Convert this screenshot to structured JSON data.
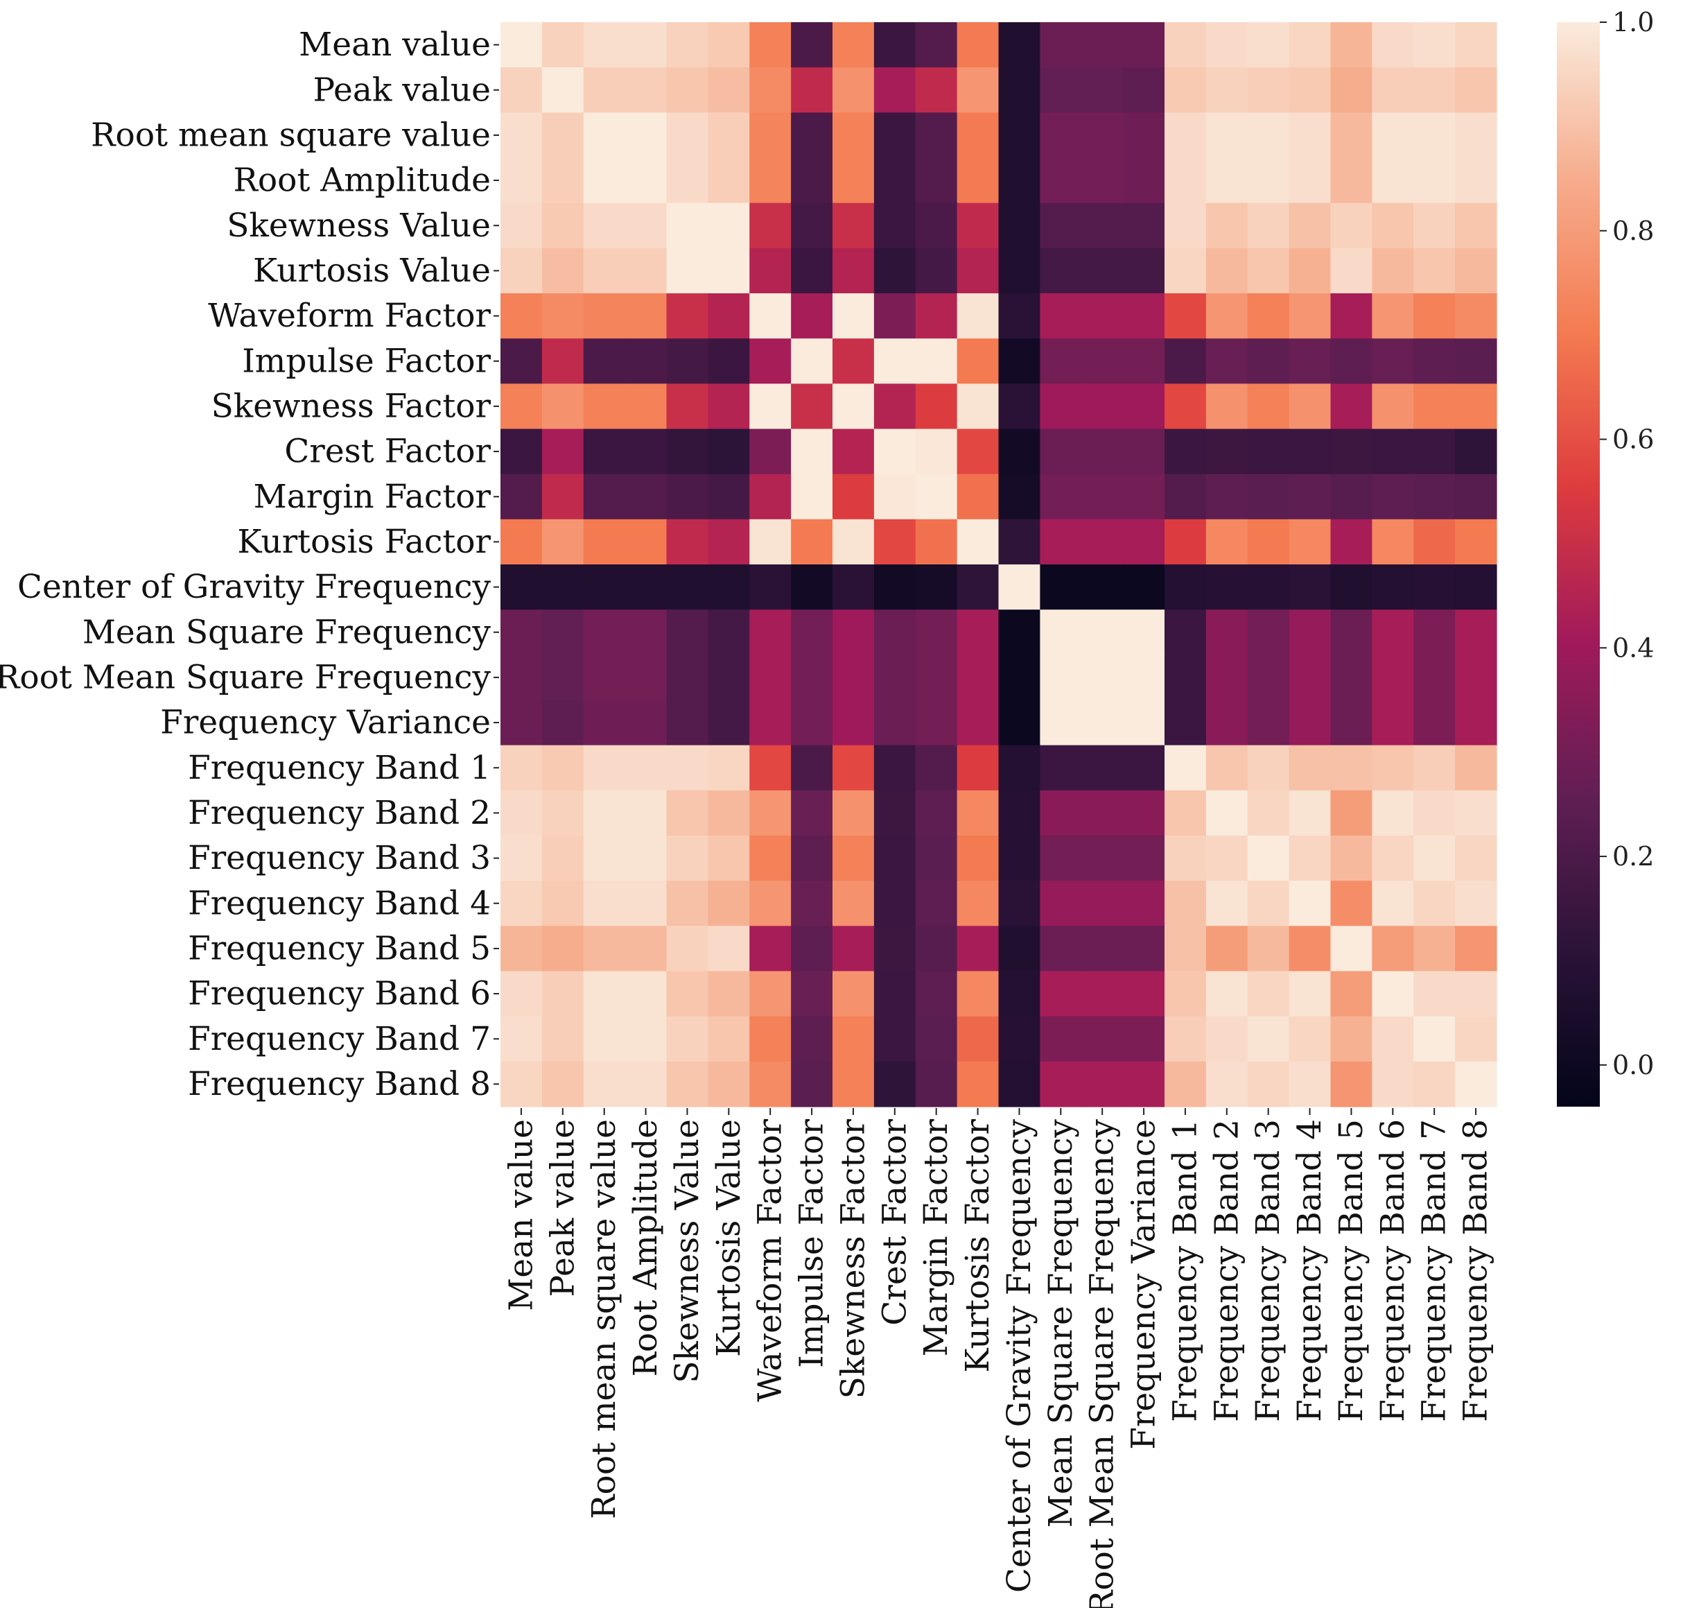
{
  "chart_data": {
    "type": "heatmap",
    "title": "",
    "xlabel": "",
    "ylabel": "",
    "labels": [
      "Mean value",
      "Peak value",
      "Root mean square value",
      "Root Amplitude",
      "Skewness Value",
      "Kurtosis Value",
      "Waveform Factor",
      "Impulse Factor",
      "Skewness Factor",
      "Crest Factor",
      "Margin Factor",
      "Kurtosis Factor",
      "Center of Gravity Frequency",
      "Mean Square Frequency",
      "Root Mean Square Frequency",
      "Frequency Variance",
      "Frequency Band 1",
      "Frequency Band 2",
      "Frequency Band 3",
      "Frequency Band 4",
      "Frequency Band 5",
      "Frequency Band 6",
      "Frequency Band 7",
      "Frequency Band 8"
    ],
    "matrix": [
      [
        1.0,
        0.94,
        0.97,
        0.97,
        0.94,
        0.92,
        0.72,
        0.2,
        0.72,
        0.15,
        0.22,
        0.7,
        0.07,
        0.28,
        0.28,
        0.28,
        0.94,
        0.96,
        0.97,
        0.95,
        0.87,
        0.96,
        0.97,
        0.95
      ],
      [
        0.94,
        1.0,
        0.93,
        0.93,
        0.91,
        0.89,
        0.75,
        0.48,
        0.77,
        0.42,
        0.48,
        0.78,
        0.07,
        0.26,
        0.26,
        0.25,
        0.92,
        0.94,
        0.93,
        0.92,
        0.85,
        0.93,
        0.93,
        0.91
      ],
      [
        0.97,
        0.93,
        1.0,
        1.0,
        0.96,
        0.93,
        0.73,
        0.2,
        0.72,
        0.15,
        0.22,
        0.7,
        0.07,
        0.3,
        0.3,
        0.29,
        0.96,
        0.98,
        0.98,
        0.97,
        0.88,
        0.98,
        0.98,
        0.97
      ],
      [
        0.97,
        0.93,
        1.0,
        1.0,
        0.96,
        0.93,
        0.73,
        0.2,
        0.72,
        0.15,
        0.22,
        0.7,
        0.07,
        0.3,
        0.3,
        0.29,
        0.96,
        0.98,
        0.98,
        0.97,
        0.88,
        0.98,
        0.98,
        0.97
      ],
      [
        0.96,
        0.92,
        0.96,
        0.96,
        1.0,
        1.0,
        0.5,
        0.18,
        0.5,
        0.15,
        0.2,
        0.48,
        0.07,
        0.22,
        0.22,
        0.22,
        0.96,
        0.91,
        0.94,
        0.9,
        0.94,
        0.91,
        0.94,
        0.91
      ],
      [
        0.94,
        0.89,
        0.93,
        0.93,
        1.0,
        1.0,
        0.45,
        0.15,
        0.45,
        0.12,
        0.18,
        0.45,
        0.07,
        0.18,
        0.18,
        0.18,
        0.95,
        0.88,
        0.91,
        0.86,
        0.96,
        0.88,
        0.91,
        0.88
      ],
      [
        0.72,
        0.75,
        0.73,
        0.73,
        0.5,
        0.45,
        1.0,
        0.42,
        1.0,
        0.32,
        0.45,
        0.98,
        0.1,
        0.42,
        0.42,
        0.42,
        0.58,
        0.78,
        0.72,
        0.78,
        0.42,
        0.78,
        0.72,
        0.75
      ],
      [
        0.2,
        0.48,
        0.2,
        0.2,
        0.18,
        0.15,
        0.42,
        1.0,
        0.5,
        1.0,
        1.0,
        0.7,
        0.02,
        0.3,
        0.3,
        0.3,
        0.2,
        0.27,
        0.25,
        0.27,
        0.25,
        0.27,
        0.25,
        0.24
      ],
      [
        0.72,
        0.77,
        0.72,
        0.72,
        0.5,
        0.45,
        1.0,
        0.5,
        1.0,
        0.45,
        0.55,
        0.98,
        0.1,
        0.4,
        0.4,
        0.4,
        0.58,
        0.77,
        0.72,
        0.77,
        0.42,
        0.77,
        0.72,
        0.72
      ],
      [
        0.15,
        0.42,
        0.15,
        0.15,
        0.13,
        0.11,
        0.32,
        1.0,
        0.45,
        1.0,
        0.99,
        0.58,
        0.02,
        0.28,
        0.28,
        0.28,
        0.15,
        0.16,
        0.15,
        0.15,
        0.16,
        0.15,
        0.15,
        0.12
      ],
      [
        0.22,
        0.48,
        0.22,
        0.22,
        0.2,
        0.18,
        0.45,
        1.0,
        0.55,
        0.99,
        1.0,
        0.68,
        0.03,
        0.3,
        0.3,
        0.3,
        0.22,
        0.25,
        0.24,
        0.25,
        0.23,
        0.25,
        0.24,
        0.23
      ],
      [
        0.7,
        0.78,
        0.7,
        0.7,
        0.48,
        0.45,
        0.98,
        0.7,
        0.98,
        0.58,
        0.68,
        1.0,
        0.12,
        0.42,
        0.42,
        0.42,
        0.55,
        0.74,
        0.7,
        0.74,
        0.42,
        0.74,
        0.66,
        0.7
      ],
      [
        0.07,
        0.07,
        0.07,
        0.07,
        0.07,
        0.07,
        0.1,
        0.02,
        0.1,
        0.02,
        0.03,
        0.12,
        1.0,
        -0.01,
        -0.01,
        -0.01,
        0.08,
        0.09,
        0.09,
        0.1,
        0.07,
        0.08,
        0.09,
        0.08
      ],
      [
        0.28,
        0.26,
        0.3,
        0.3,
        0.22,
        0.18,
        0.42,
        0.3,
        0.4,
        0.28,
        0.3,
        0.42,
        -0.01,
        1.0,
        1.0,
        1.0,
        0.15,
        0.35,
        0.3,
        0.38,
        0.28,
        0.42,
        0.32,
        0.42
      ],
      [
        0.28,
        0.26,
        0.3,
        0.3,
        0.22,
        0.18,
        0.42,
        0.3,
        0.4,
        0.28,
        0.3,
        0.42,
        -0.01,
        1.0,
        1.0,
        1.0,
        0.15,
        0.35,
        0.3,
        0.38,
        0.28,
        0.42,
        0.32,
        0.42
      ],
      [
        0.28,
        0.25,
        0.29,
        0.29,
        0.22,
        0.18,
        0.42,
        0.3,
        0.4,
        0.28,
        0.3,
        0.42,
        -0.01,
        1.0,
        1.0,
        1.0,
        0.15,
        0.35,
        0.3,
        0.38,
        0.28,
        0.42,
        0.32,
        0.42
      ],
      [
        0.94,
        0.92,
        0.96,
        0.96,
        0.96,
        0.95,
        0.58,
        0.2,
        0.58,
        0.15,
        0.22,
        0.55,
        0.08,
        0.15,
        0.15,
        0.15,
        1.0,
        0.91,
        0.94,
        0.9,
        0.9,
        0.91,
        0.93,
        0.88
      ],
      [
        0.96,
        0.94,
        0.98,
        0.98,
        0.91,
        0.88,
        0.78,
        0.27,
        0.77,
        0.16,
        0.25,
        0.74,
        0.09,
        0.35,
        0.35,
        0.35,
        0.91,
        1.0,
        0.95,
        0.98,
        0.8,
        0.98,
        0.96,
        0.97
      ],
      [
        0.97,
        0.93,
        0.98,
        0.98,
        0.94,
        0.91,
        0.72,
        0.25,
        0.72,
        0.15,
        0.24,
        0.7,
        0.09,
        0.3,
        0.3,
        0.3,
        0.94,
        0.95,
        1.0,
        0.95,
        0.88,
        0.95,
        0.98,
        0.95
      ],
      [
        0.95,
        0.92,
        0.97,
        0.97,
        0.9,
        0.86,
        0.78,
        0.27,
        0.77,
        0.15,
        0.25,
        0.74,
        0.1,
        0.38,
        0.38,
        0.38,
        0.9,
        0.98,
        0.95,
        1.0,
        0.76,
        0.98,
        0.95,
        0.97
      ],
      [
        0.87,
        0.85,
        0.88,
        0.88,
        0.94,
        0.96,
        0.42,
        0.25,
        0.42,
        0.16,
        0.23,
        0.42,
        0.07,
        0.28,
        0.28,
        0.28,
        0.9,
        0.8,
        0.88,
        0.76,
        1.0,
        0.8,
        0.86,
        0.78
      ],
      [
        0.96,
        0.93,
        0.98,
        0.98,
        0.91,
        0.88,
        0.78,
        0.27,
        0.77,
        0.15,
        0.25,
        0.74,
        0.08,
        0.42,
        0.42,
        0.42,
        0.91,
        0.98,
        0.95,
        0.98,
        0.8,
        1.0,
        0.96,
        0.96
      ],
      [
        0.97,
        0.93,
        0.98,
        0.98,
        0.94,
        0.91,
        0.72,
        0.25,
        0.72,
        0.15,
        0.24,
        0.66,
        0.09,
        0.32,
        0.32,
        0.32,
        0.93,
        0.96,
        0.98,
        0.95,
        0.86,
        0.96,
        1.0,
        0.95
      ],
      [
        0.95,
        0.91,
        0.97,
        0.97,
        0.91,
        0.88,
        0.75,
        0.24,
        0.72,
        0.12,
        0.23,
        0.7,
        0.08,
        0.42,
        0.42,
        0.42,
        0.88,
        0.97,
        0.95,
        0.97,
        0.78,
        0.96,
        0.95,
        1.0
      ]
    ],
    "colorbar": {
      "vmin": -0.04,
      "vmax": 1.0,
      "ticks": [
        0.0,
        0.2,
        0.4,
        0.6,
        0.8,
        1.0
      ],
      "tick_labels": [
        "0.0",
        "0.2",
        "0.4",
        "0.6",
        "0.8",
        "1.0"
      ],
      "colormap": "rocket",
      "color_stops": [
        "#03051a",
        "#2b1338",
        "#611f53",
        "#a11a5b",
        "#de3c3e",
        "#f47b51",
        "#f6ad8e",
        "#faebdd"
      ]
    }
  }
}
